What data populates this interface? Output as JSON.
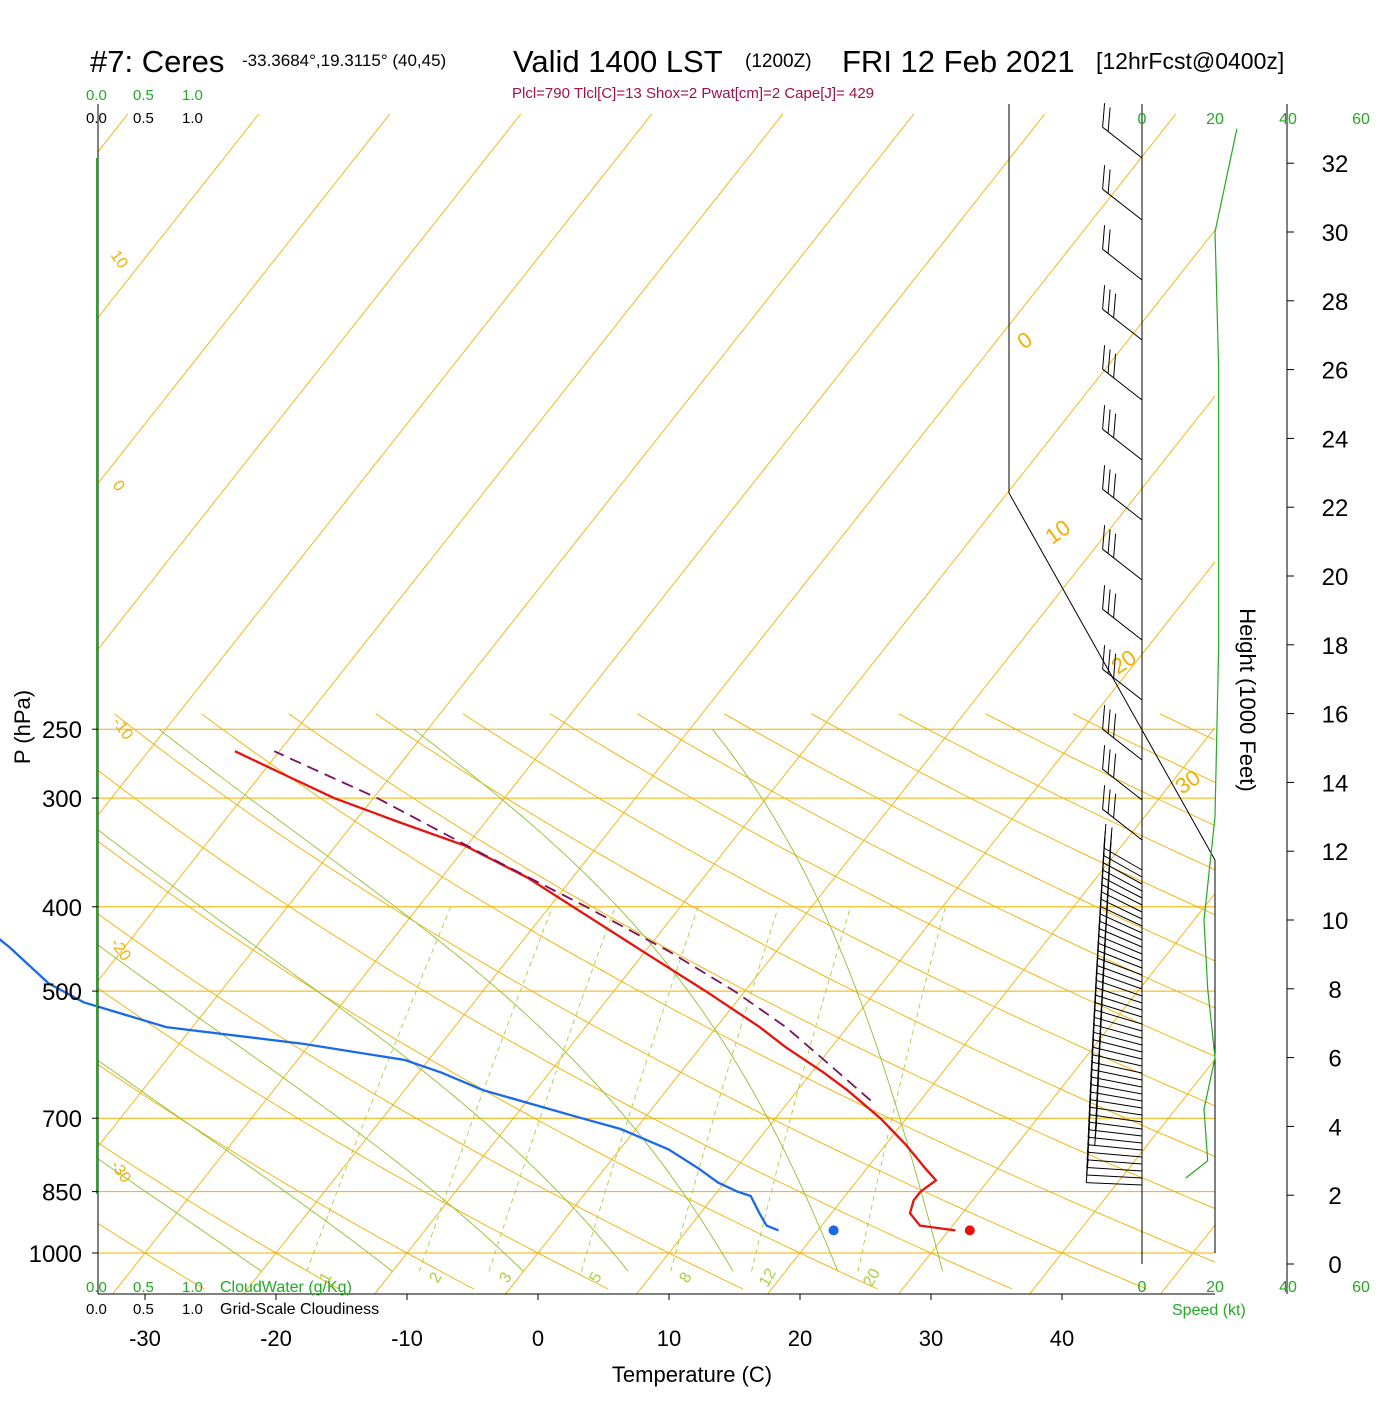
{
  "header": {
    "station": "#7: Ceres",
    "coords": "-33.3684°,19.3115° (40,45)",
    "valid": "Valid 1400 LST",
    "zulu": "(1200Z)",
    "date": "FRI 12 Feb 2021",
    "forecast": "[12hrFcst@0400z]",
    "indices": "Plcl=790 Tlcl[C]=13 Shox=2 Pwat[cm]=2 Cape[J]= 429"
  },
  "colors": {
    "temperature": "#e8120c",
    "dewpoint": "#1a6ae8",
    "parcel": "#7a1060",
    "isotherm_isobar": "#f0b000",
    "dry_adiabat": "#f0b000",
    "moist_adiabat": "#90c030",
    "mixing_ratio": "#a8d040",
    "cloud_scale": "#22aa22",
    "wind_speed": "#22aa22",
    "title_indices": "#a0104a"
  },
  "chart_data": {
    "type": "line",
    "diagram": "skew-T log-P",
    "xlabel": "Temperature (C)",
    "ylabel": "P (hPa)",
    "right_ylabel": "Height (1000 Feet)",
    "x_ticks": [
      "-30",
      "-20",
      "-10",
      "0",
      "10",
      "20",
      "30",
      "40"
    ],
    "x_tick_values": [
      -30,
      -20,
      -10,
      0,
      10,
      20,
      30,
      40
    ],
    "p_ticks": [
      "250",
      "300",
      "400",
      "500",
      "700",
      "850",
      "1000"
    ],
    "p_tick_values": [
      250,
      300,
      400,
      500,
      700,
      850,
      1000
    ],
    "height_ticks": [
      "0",
      "2",
      "4",
      "6",
      "8",
      "10",
      "12",
      "14",
      "16",
      "18",
      "20",
      "22",
      "24",
      "26",
      "28",
      "30",
      "32"
    ],
    "height_tick_values": [
      0,
      2,
      4,
      6,
      8,
      10,
      12,
      14,
      16,
      18,
      20,
      22,
      24,
      26,
      28,
      30,
      32
    ],
    "dry_adiabat_labels": [
      "10",
      "0",
      "-10",
      "-20",
      "-30"
    ],
    "moist_adiabat_labels": [
      "0",
      "10",
      "20",
      "30"
    ],
    "mixing_ratio_labels": [
      "1",
      "2",
      "3",
      "5",
      "8",
      "12",
      "20"
    ],
    "cloud_scale_top_green": [
      "0.0",
      "0.5",
      "1.0"
    ],
    "cloud_scale_top_black": [
      "0.0",
      "0.5",
      "1.0"
    ],
    "cloud_scale_bottom_green": [
      "0.0",
      "0.5",
      "1.0"
    ],
    "cloud_scale_bottom_black": [
      "0.0",
      "0.5",
      "1.0"
    ],
    "cloud_water_label": "CloudWater (g/Kg)",
    "cloudiness_label": "Grid-Scale Cloudiness",
    "speed_ticks": [
      "0",
      "20",
      "40",
      "60"
    ],
    "speed_label": "Speed (kt)",
    "series": [
      {
        "name": "temperature",
        "points": [
          {
            "p": 942,
            "t": 30.5
          },
          {
            "p": 930,
            "t": 27.5
          },
          {
            "p": 900,
            "t": 26.0
          },
          {
            "p": 870,
            "t": 25.5
          },
          {
            "p": 850,
            "t": 25.5
          },
          {
            "p": 825,
            "t": 26.0
          },
          {
            "p": 800,
            "t": 24.5
          },
          {
            "p": 750,
            "t": 21.5
          },
          {
            "p": 700,
            "t": 18.0
          },
          {
            "p": 650,
            "t": 13.8
          },
          {
            "p": 620,
            "t": 10.9
          },
          {
            "p": 580,
            "t": 6.5
          },
          {
            "p": 550,
            "t": 3.3
          },
          {
            "p": 500,
            "t": -3.0
          },
          {
            "p": 450,
            "t": -10.2
          },
          {
            "p": 400,
            "t": -18.2
          },
          {
            "p": 370,
            "t": -23.5
          },
          {
            "p": 340,
            "t": -30.2
          },
          {
            "p": 320,
            "t": -36.5
          },
          {
            "p": 300,
            "t": -43.0
          },
          {
            "p": 280,
            "t": -48.8
          },
          {
            "p": 265,
            "t": -53.4
          }
        ]
      },
      {
        "name": "dewpoint",
        "points": [
          {
            "p": 942,
            "t": 17.0
          },
          {
            "p": 930,
            "t": 15.8
          },
          {
            "p": 900,
            "t": 14.5
          },
          {
            "p": 860,
            "t": 12.8
          },
          {
            "p": 850,
            "t": 11.5
          },
          {
            "p": 830,
            "t": 9.5
          },
          {
            "p": 800,
            "t": 7.2
          },
          {
            "p": 760,
            "t": 3.7
          },
          {
            "p": 720,
            "t": -1.2
          },
          {
            "p": 700,
            "t": -4.8
          },
          {
            "p": 650,
            "t": -14.0
          },
          {
            "p": 620,
            "t": -18.3
          },
          {
            "p": 600,
            "t": -21.8
          },
          {
            "p": 575,
            "t": -30.5
          },
          {
            "p": 550,
            "t": -42.0
          },
          {
            "p": 515,
            "t": -49.8
          },
          {
            "p": 490,
            "t": -53.6
          },
          {
            "p": 445,
            "t": -58.8
          },
          {
            "p": 400,
            "t": -65.1
          },
          {
            "p": 365,
            "t": -67.2
          },
          {
            "p": 340,
            "t": -69.0
          },
          {
            "p": 320,
            "t": -72.8
          },
          {
            "p": 300,
            "t": -78.6
          },
          {
            "p": 265,
            "t": -89.0
          }
        ]
      },
      {
        "name": "parcel",
        "points": [
          {
            "p": 668,
            "t": 16.2
          },
          {
            "p": 600,
            "t": 10.2
          },
          {
            "p": 550,
            "t": 5.3
          },
          {
            "p": 500,
            "t": -0.8
          },
          {
            "p": 450,
            "t": -8.2
          },
          {
            "p": 400,
            "t": -17.2
          },
          {
            "p": 350,
            "t": -27.8
          },
          {
            "p": 300,
            "t": -39.7
          },
          {
            "p": 265,
            "t": -50.4
          }
        ]
      }
    ],
    "surface_markers": [
      {
        "name": "temperature",
        "p": 942,
        "t": 31.6
      },
      {
        "name": "dewpoint",
        "p": 942,
        "t": 21.2
      }
    ],
    "wind_speed_profile": [
      {
        "height_kft": 2.5,
        "speed_kt": 12
      },
      {
        "height_kft": 3.0,
        "speed_kt": 18
      },
      {
        "height_kft": 4.5,
        "speed_kt": 17
      },
      {
        "height_kft": 6.0,
        "speed_kt": 20
      },
      {
        "height_kft": 8.0,
        "speed_kt": 18
      },
      {
        "height_kft": 10.0,
        "speed_kt": 17
      },
      {
        "height_kft": 13.0,
        "speed_kt": 20
      },
      {
        "height_kft": 18.0,
        "speed_kt": 21
      },
      {
        "height_kft": 26.0,
        "speed_kt": 21
      },
      {
        "height_kft": 30.0,
        "speed_kt": 20
      },
      {
        "height_kft": 33.0,
        "speed_kt": 26
      }
    ]
  }
}
